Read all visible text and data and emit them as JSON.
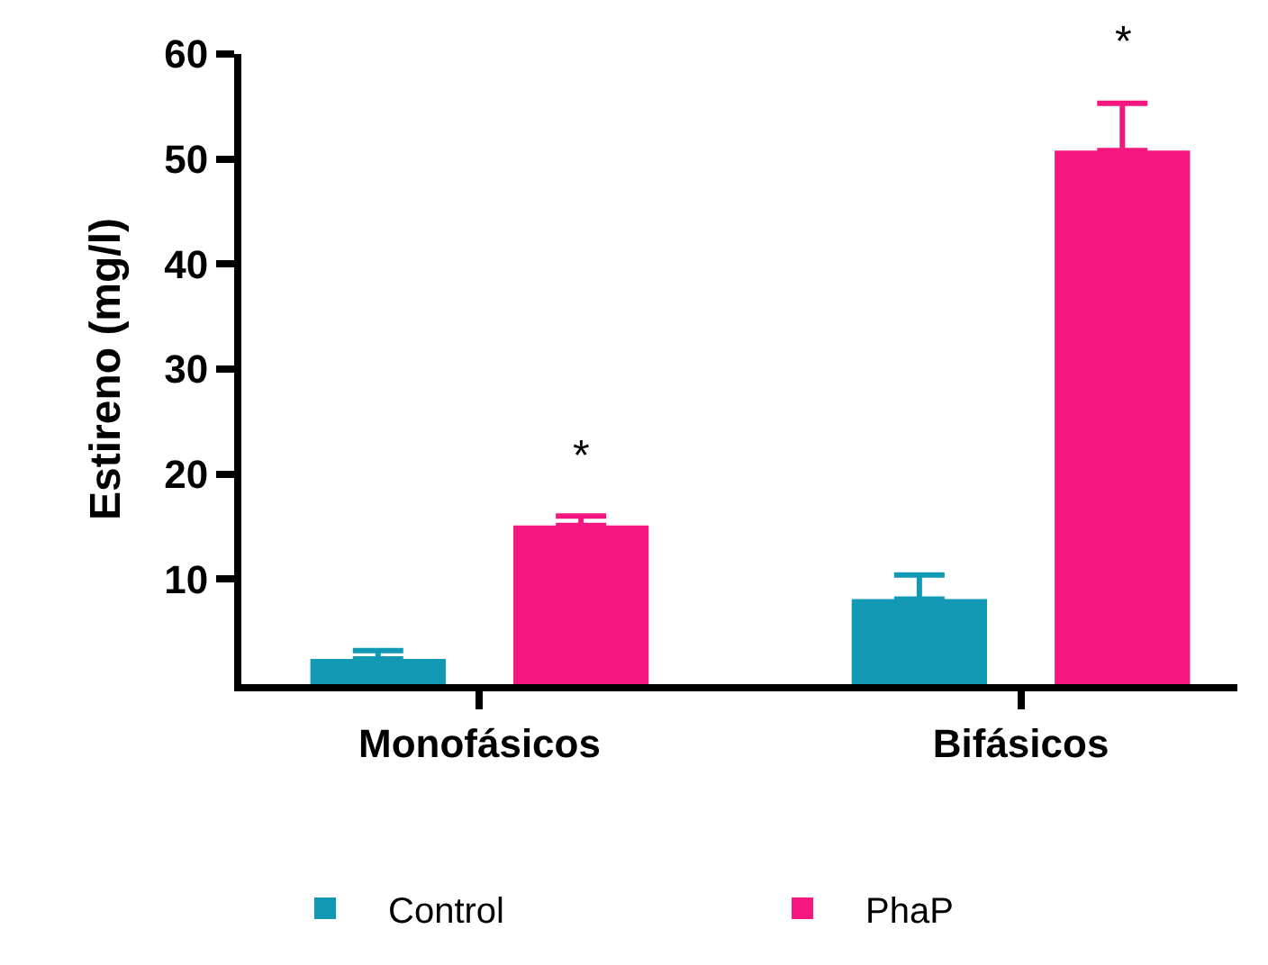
{
  "chart_data": {
    "type": "bar",
    "ylabel": "Estireno (mg/l)",
    "categories": [
      "Monofásicos",
      "Bifásicos"
    ],
    "series": [
      {
        "name": "Control",
        "color": "#1199b4",
        "values": [
          2.4,
          8.1
        ],
        "errors": [
          [
            2.4,
            3.2
          ],
          [
            8.1,
            10.4
          ]
        ]
      },
      {
        "name": "PhaP",
        "color": "#f5177f",
        "values": [
          15.1,
          50.8
        ],
        "errors": [
          [
            15.1,
            16.0
          ],
          [
            50.8,
            55.3
          ]
        ]
      }
    ],
    "ylim": [
      0,
      60
    ],
    "yticks": [
      10,
      20,
      30,
      40,
      50,
      60
    ],
    "grid": false,
    "legend": "bottom",
    "annotations": [
      "*",
      "*"
    ]
  }
}
